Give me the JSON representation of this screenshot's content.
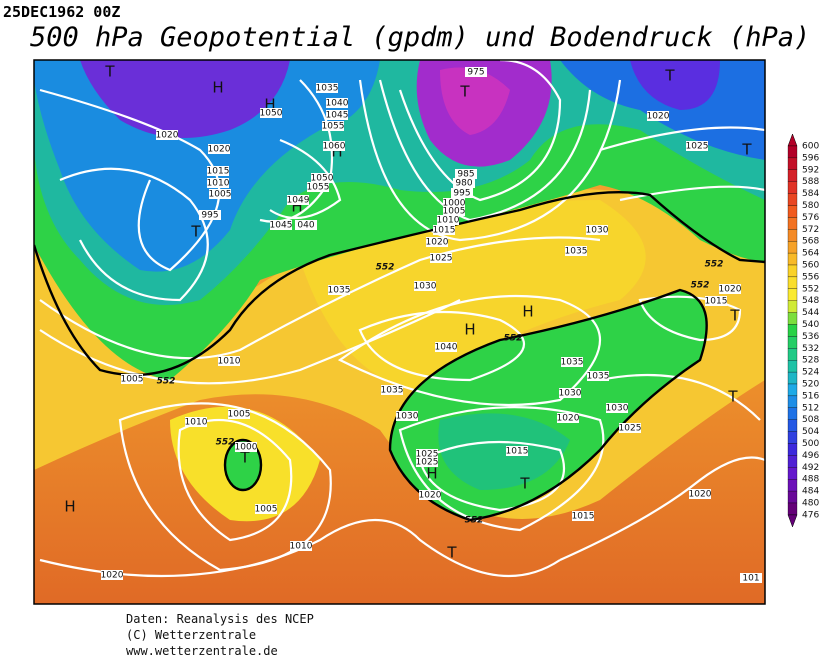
{
  "header": {
    "date": "25DEC1962 00Z",
    "title": "500 hPa Geopotential (gpdm) und Bodendruck (hPa)"
  },
  "legend": {
    "ticks": [
      600,
      596,
      592,
      588,
      584,
      580,
      576,
      572,
      568,
      564,
      560,
      556,
      552,
      548,
      544,
      540,
      536,
      532,
      528,
      524,
      520,
      516,
      512,
      508,
      504,
      500,
      496,
      492,
      488,
      484,
      480,
      476
    ]
  },
  "map": {
    "pressure_centers": [
      "T",
      "H",
      "H",
      "T",
      "T",
      "T",
      "H",
      "H",
      "T",
      "H",
      "H",
      "T",
      "T",
      "T",
      "H",
      "T",
      "H",
      "T"
    ],
    "isobar_labels": [
      "975",
      "1035",
      "1040",
      "1045",
      "1050",
      "1055",
      "1020",
      "1020",
      "1060",
      "1025",
      "1020",
      "1015",
      "1010",
      "1005",
      "1050",
      "1055",
      "1049",
      "995",
      "1045",
      "040",
      "985",
      "980",
      "995",
      "1000",
      "1005",
      "1010",
      "1015",
      "1020",
      "1025",
      "1030",
      "1035",
      "1030",
      "1035",
      "1015",
      "1020",
      "1040",
      "1010",
      "1005",
      "1035",
      "1035",
      "1035",
      "1030",
      "1030",
      "1010",
      "1005",
      "1030",
      "1020",
      "1025",
      "1000",
      "1025",
      "1025",
      "1015",
      "1020",
      "1020",
      "1005",
      "1015",
      "1010",
      "1020",
      "101"
    ],
    "contour_labels": [
      "552",
      "552",
      "552",
      "552",
      "552",
      "552",
      "552"
    ]
  },
  "footer": {
    "lines": [
      "Daten: Reanalysis des NCEP",
      "(C) Wetterzentrale",
      "www.wetterzentrale.de"
    ]
  }
}
